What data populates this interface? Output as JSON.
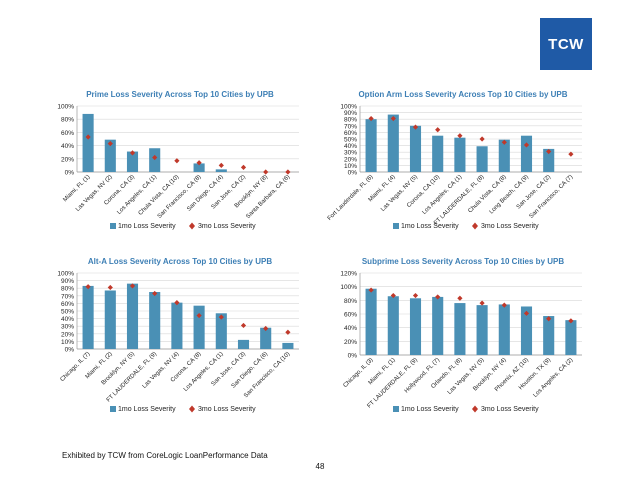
{
  "logo_text": "TCW",
  "footer": {
    "source": "Exhibited by TCW from CoreLogic LoanPerformance Data",
    "page": "48"
  },
  "colors": {
    "bar": "#4a90b5",
    "marker": "#c0392b",
    "title": "#3d7fb5",
    "grid": "#d8d8d8"
  },
  "chart_data": [
    {
      "type": "bar",
      "title": "Prime Loss Severity Across Top 10 Cities by UPB",
      "categories": [
        "Miami, FL (1)",
        "Las Vegas, NV (2)",
        "Corona, CA (3)",
        "Los Angeles, CA (1)",
        "Chula Vista, CA (10)",
        "San Francisco, CA (8)",
        "San Diego, CA (4)",
        "San Jose, CA (2)",
        "Brooklyn, NY (8)",
        "Santa Barbara, CA (6)"
      ],
      "yticks": [
        "0%",
        "20%",
        "40%",
        "60%",
        "80%",
        "100%"
      ],
      "ylim": [
        0,
        100
      ],
      "series": [
        {
          "name": "1mo Loss Severity",
          "kind": "bar",
          "values": [
            88,
            49,
            31,
            36,
            0,
            13,
            4,
            0,
            0,
            0
          ]
        },
        {
          "name": "3mo Loss Severity",
          "kind": "marker",
          "values": [
            53,
            43,
            29,
            22,
            17,
            14,
            10,
            7,
            0,
            0
          ]
        }
      ]
    },
    {
      "type": "bar",
      "title": "Option Arm Loss Severity Across Top 10 Cities by UPB",
      "categories": [
        "Fort Lauderdale, FL (6)",
        "Miami, FL (4)",
        "Las Vegas, NV (5)",
        "Corona, CA (10)",
        "Los Angeles, CA (1)",
        "FT LAUDERDALE, FL (8)",
        "Chula Vista, CA (8)",
        "Long Beach, CA (9)",
        "San Jose, CA (2)",
        "San Francisco, CA (7)"
      ],
      "yticks": [
        "0%",
        "10%",
        "20%",
        "30%",
        "40%",
        "50%",
        "60%",
        "70%",
        "80%",
        "90%",
        "100%"
      ],
      "ylim": [
        0,
        100
      ],
      "series": [
        {
          "name": "1mo Loss Severity",
          "kind": "bar",
          "values": [
            80,
            87,
            70,
            55,
            52,
            39,
            49,
            55,
            35,
            0
          ]
        },
        {
          "name": "3mo Loss Severity",
          "kind": "marker",
          "values": [
            81,
            81,
            68,
            64,
            55,
            50,
            45,
            41,
            31,
            27
          ]
        }
      ]
    },
    {
      "type": "bar",
      "title": "Alt-A Loss Severity Across Top 10 Cities by UPB",
      "categories": [
        "Chicago, IL (7)",
        "Miami, FL (2)",
        "Brooklyn, NY (5)",
        "FT LAUDERDALE, FL (9)",
        "Las Vegas, NV (4)",
        "Corona, CA (8)",
        "Los Angeles, CA (1)",
        "San Jose, CA (3)",
        "San Diego, CA (6)",
        "San Francisco, CA (10)"
      ],
      "yticks": [
        "0%",
        "10%",
        "20%",
        "30%",
        "40%",
        "50%",
        "60%",
        "70%",
        "80%",
        "90%",
        "100%"
      ],
      "ylim": [
        0,
        100
      ],
      "series": [
        {
          "name": "1mo Loss Severity",
          "kind": "bar",
          "values": [
            83,
            77,
            86,
            75,
            61,
            57,
            47,
            12,
            28,
            8
          ]
        },
        {
          "name": "3mo Loss Severity",
          "kind": "marker",
          "values": [
            82,
            81,
            83,
            73,
            61,
            44,
            42,
            31,
            27,
            22
          ]
        }
      ]
    },
    {
      "type": "bar",
      "title": "Subprime Loss Severity Across Top 10 Cities by UPB",
      "categories": [
        "Chicago, IL (3)",
        "Miami, FL (1)",
        "FT LAUDERDALE, FL (9)",
        "Hollywood, FL (7)",
        "Orlando, FL (8)",
        "Las Vegas, NV (5)",
        "Brooklyn, NY (4)",
        "Phoenix, AZ (10)",
        "Houston, TX (9)",
        "Los Angeles, CA (2)"
      ],
      "yticks": [
        "0%",
        "20%",
        "40%",
        "60%",
        "80%",
        "100%",
        "120%"
      ],
      "ylim": [
        0,
        120
      ],
      "series": [
        {
          "name": "1mo Loss Severity",
          "kind": "bar",
          "values": [
            97,
            86,
            83,
            85,
            76,
            73,
            74,
            71,
            57,
            51
          ]
        },
        {
          "name": "3mo Loss Severity",
          "kind": "marker",
          "values": [
            95,
            87,
            87,
            85,
            83,
            76,
            73,
            61,
            53,
            50
          ]
        }
      ]
    }
  ]
}
